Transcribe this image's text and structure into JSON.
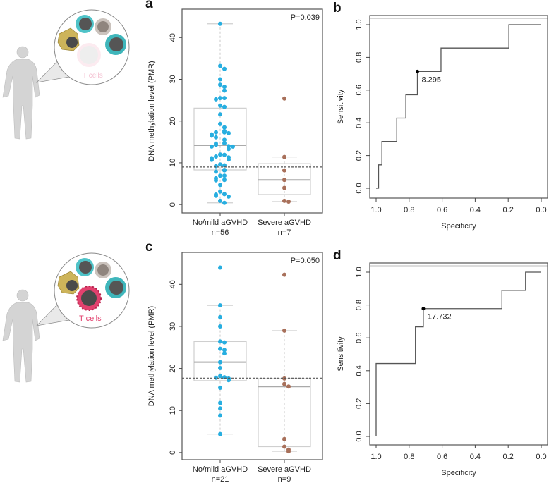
{
  "figure": {
    "illustrations": [
      {
        "cell_label": "T cells",
        "highlighted": false
      },
      {
        "cell_label": "T cells",
        "highlighted": true
      }
    ],
    "colors": {
      "mild": "#27aee0",
      "severe": "#a8705a",
      "box": "#cfcfcf",
      "tcell_faded": "#f6cdd9",
      "tcell_active": "#e2416e"
    }
  },
  "chart_data": [
    {
      "panel": "a",
      "type": "boxplot-dotplot",
      "ylabel": "DNA methylation level (PMR)",
      "ylim": [
        -2,
        46.8
      ],
      "yticks": [
        0,
        10,
        20,
        30,
        40
      ],
      "annotation": "P=0.039",
      "cutoff": 9.0,
      "groups": [
        {
          "name": "No/mild aGVHD",
          "n_label": "n=56",
          "color": "#27aee0",
          "box": {
            "whisker_low": 0.4,
            "q1": 8.3,
            "median": 14.2,
            "q3": 23.1,
            "whisker_high": 43.3
          },
          "values": [
            43.3,
            33.2,
            32.5,
            30,
            28.7,
            28.2,
            27.3,
            25.5,
            25.5,
            25.2,
            23.7,
            23.4,
            21.6,
            19.3,
            18.5,
            17.6,
            17.3,
            17.3,
            17.1,
            16.8,
            16.5,
            16.1,
            15.5,
            14.7,
            14.6,
            14.3,
            14.0,
            13.9,
            13.9,
            13.3,
            12.0,
            11.9,
            11.5,
            11.3,
            11.1,
            10.8,
            10.7,
            9.6,
            9.4,
            9.2,
            8.3,
            8.2,
            7.9,
            6.9,
            6.9,
            6.3,
            5.9,
            5.8,
            4.7,
            3.1,
            2.5,
            2.4,
            2.1,
            1.9,
            0.9,
            0.4
          ]
        },
        {
          "name": "Severe aGVHD",
          "n_label": "n=7",
          "color": "#a8705a",
          "box": {
            "whisker_low": 0.7,
            "q1": 2.4,
            "median": 5.9,
            "q3": 9.8,
            "whisker_high": 11.4
          },
          "values": [
            25.4,
            11.4,
            8.2,
            5.9,
            4.0,
            0.9,
            0.7
          ]
        }
      ]
    },
    {
      "panel": "b",
      "type": "line",
      "xlabel": "Specificity",
      "ylabel": "Sensitivity",
      "xlim": [
        1.04,
        -0.02
      ],
      "ylim": [
        -0.05,
        1.05
      ],
      "xticks": [
        "1.0",
        "0.8",
        "0.6",
        "0.4",
        "0.2",
        "0.0"
      ],
      "yticks": [
        "0.0",
        "0.2",
        "0.4",
        "0.6",
        "0.8",
        "1.0"
      ],
      "roc": [
        [
          1.0,
          0
        ],
        [
          0.985,
          0
        ],
        [
          0.985,
          0.143
        ],
        [
          0.965,
          0.143
        ],
        [
          0.965,
          0.286
        ],
        [
          0.875,
          0.286
        ],
        [
          0.875,
          0.429
        ],
        [
          0.82,
          0.429
        ],
        [
          0.82,
          0.571
        ],
        [
          0.75,
          0.571
        ],
        [
          0.75,
          0.714
        ],
        [
          0.607,
          0.714
        ],
        [
          0.607,
          0.857
        ],
        [
          0.196,
          0.857
        ],
        [
          0.196,
          1.0
        ],
        [
          0,
          1.0
        ]
      ],
      "best_point": {
        "specificity": 0.75,
        "sensitivity": 0.714,
        "label": "8.295"
      }
    },
    {
      "panel": "c",
      "type": "boxplot-dotplot",
      "ylabel": "DNA methylation level (PMR)",
      "ylim": [
        -1.7,
        47.6
      ],
      "yticks": [
        0,
        10,
        20,
        30,
        40
      ],
      "annotation": "P=0.050",
      "cutoff": 17.7,
      "groups": [
        {
          "name": "No/mild aGVHD",
          "n_label": "n=21",
          "color": "#27aee0",
          "box": {
            "whisker_low": 4.4,
            "q1": 17.1,
            "median": 21.5,
            "q3": 26.4,
            "whisker_high": 35.0
          },
          "values": [
            44,
            35,
            32.2,
            30,
            26.4,
            26.2,
            24.7,
            24.4,
            23.6,
            21.5,
            20.1,
            18.2,
            17.9,
            17.8,
            17.6,
            17.2,
            15.4,
            11.8,
            10.5,
            8.8,
            4.4
          ]
        },
        {
          "name": "Severe aGVHD",
          "n_label": "n=9",
          "color": "#a8705a",
          "box": {
            "whisker_low": 0.3,
            "q1": 1.4,
            "median": 15.7,
            "q3": 17.6,
            "whisker_high": 29.0
          },
          "values": [
            42.3,
            29,
            17.6,
            16.3,
            15.7,
            3.2,
            1.4,
            0.7,
            0.3
          ]
        }
      ]
    },
    {
      "panel": "d",
      "type": "line",
      "xlabel": "Specificity",
      "ylabel": "Sensitivity",
      "xlim": [
        1.04,
        -0.02
      ],
      "ylim": [
        -0.05,
        1.05
      ],
      "xticks": [
        "1.0",
        "0.8",
        "0.6",
        "0.4",
        "0.2",
        "0.0"
      ],
      "yticks": [
        "0.0",
        "0.2",
        "0.4",
        "0.6",
        "0.8",
        "1.0"
      ],
      "roc": [
        [
          1.0,
          0
        ],
        [
          1.0,
          0.444
        ],
        [
          0.762,
          0.444
        ],
        [
          0.762,
          0.667
        ],
        [
          0.714,
          0.667
        ],
        [
          0.714,
          0.778
        ],
        [
          0.238,
          0.778
        ],
        [
          0.238,
          0.889
        ],
        [
          0.095,
          0.889
        ],
        [
          0.095,
          1.0
        ],
        [
          0,
          1.0
        ]
      ],
      "best_point": {
        "specificity": 0.714,
        "sensitivity": 0.778,
        "label": "17.732"
      }
    }
  ]
}
